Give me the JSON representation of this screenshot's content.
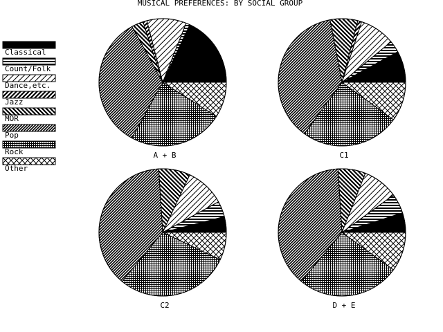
{
  "chart_data": {
    "type": "pie",
    "title": "MUSICAL PREFERENCES: BY SOCIAL GROUP",
    "categories": [
      "Classical",
      "Count/Folk",
      "Dance,etc.",
      "Jazz",
      "MOR",
      "Pop",
      "Rock",
      "Other"
    ],
    "legend": {
      "placement": "left"
    },
    "charts": [
      {
        "label": "A + B",
        "values": [
          18,
          1,
          10,
          1,
          3,
          34,
          24,
          9
        ]
      },
      {
        "label": "C1",
        "values": [
          8,
          3,
          9,
          1,
          7,
          37,
          25,
          10
        ]
      },
      {
        "label": "C2",
        "values": [
          4,
          4,
          10,
          0,
          8,
          38,
          29,
          7
        ]
      },
      {
        "label": "D + E",
        "values": [
          5,
          5,
          9,
          0,
          7,
          38,
          26,
          10
        ]
      }
    ],
    "colors": {
      "ink": "#000000",
      "paper": "#ffffff"
    }
  }
}
